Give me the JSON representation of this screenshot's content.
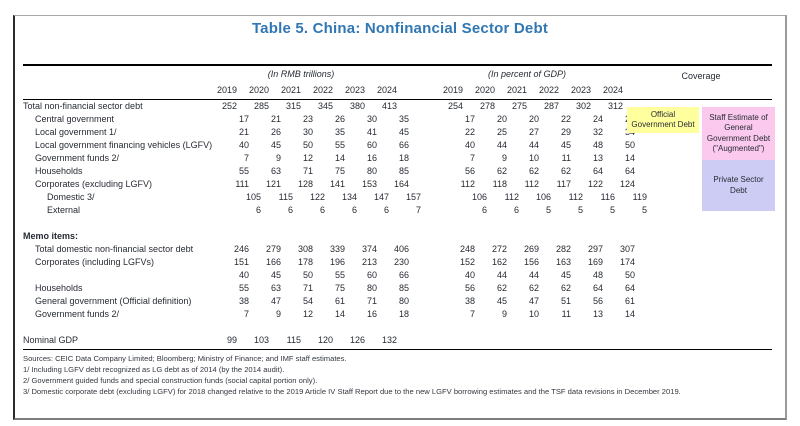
{
  "title": "Table 5. China: Nonfinancial Sector Debt",
  "table": {
    "group_rmb": "(In RMB trillions)",
    "group_gdp": "(In percent of GDP)",
    "coverage_header": "Coverage",
    "years": [
      "2019",
      "2020",
      "2021",
      "2022",
      "2023",
      "2024"
    ],
    "rows": [
      {
        "label": "Total non-financial sector debt",
        "indent": 0,
        "rmb": [
          252,
          285,
          315,
          345,
          380,
          413
        ],
        "gdp": [
          254,
          278,
          275,
          287,
          302,
          312
        ]
      },
      {
        "label": "Central government",
        "indent": 1,
        "rmb": [
          17,
          21,
          23,
          26,
          30,
          35
        ],
        "gdp": [
          17,
          20,
          20,
          22,
          24,
          26
        ]
      },
      {
        "label": "Local government 1/",
        "indent": 1,
        "rmb": [
          21,
          26,
          30,
          35,
          41,
          45
        ],
        "gdp": [
          22,
          25,
          27,
          29,
          32,
          34
        ]
      },
      {
        "label": "Local government financing vehicles (LGFV)",
        "indent": 1,
        "rmb": [
          40,
          45,
          50,
          55,
          60,
          66
        ],
        "gdp": [
          40,
          44,
          44,
          45,
          48,
          50
        ]
      },
      {
        "label": "Government funds 2/",
        "indent": 1,
        "rmb": [
          7,
          9,
          12,
          14,
          16,
          18
        ],
        "gdp": [
          7,
          9,
          10,
          11,
          13,
          14
        ]
      },
      {
        "label": "Households",
        "indent": 1,
        "rmb": [
          55,
          63,
          71,
          75,
          80,
          85
        ],
        "gdp": [
          56,
          62,
          62,
          62,
          64,
          64
        ]
      },
      {
        "label": "Corporates (excluding LGFV)",
        "indent": 1,
        "rmb": [
          111,
          121,
          128,
          141,
          153,
          164
        ],
        "gdp": [
          112,
          118,
          112,
          117,
          122,
          124
        ]
      },
      {
        "label": "Domestic 3/",
        "indent": 2,
        "rmb": [
          105,
          115,
          122,
          134,
          147,
          157
        ],
        "gdp": [
          106,
          112,
          106,
          112,
          116,
          119
        ]
      },
      {
        "label": "External",
        "indent": 2,
        "rmb": [
          6,
          6,
          6,
          6,
          6,
          7
        ],
        "gdp": [
          6,
          6,
          5,
          5,
          5,
          5
        ]
      },
      {
        "spacer": true
      },
      {
        "label": "Memo items:",
        "indent": 0,
        "bold": true
      },
      {
        "label": "Total domestic non-financial sector debt",
        "indent": 1,
        "rmb": [
          246,
          279,
          308,
          339,
          374,
          406
        ],
        "gdp": [
          248,
          272,
          269,
          282,
          297,
          307
        ]
      },
      {
        "label": "Corporates (including LGFVs)",
        "indent": 1,
        "rmb": [
          151,
          166,
          178,
          196,
          213,
          230
        ],
        "gdp": [
          152,
          162,
          156,
          163,
          169,
          174
        ]
      },
      {
        "label": "",
        "indent": 1,
        "rmb": [
          40,
          45,
          50,
          55,
          60,
          66
        ],
        "gdp": [
          40,
          44,
          44,
          45,
          48,
          50
        ]
      },
      {
        "label": "Households",
        "indent": 1,
        "rmb": [
          55,
          63,
          71,
          75,
          80,
          85
        ],
        "gdp": [
          56,
          62,
          62,
          62,
          64,
          64
        ]
      },
      {
        "label": "General government (Official definition)",
        "indent": 1,
        "rmb": [
          38,
          47,
          54,
          61,
          71,
          80
        ],
        "gdp": [
          38,
          45,
          47,
          51,
          56,
          61
        ]
      },
      {
        "label": "Government funds 2/",
        "indent": 1,
        "rmb": [
          7,
          9,
          12,
          14,
          16,
          18
        ],
        "gdp": [
          7,
          9,
          10,
          11,
          13,
          14
        ]
      },
      {
        "spacer": true
      },
      {
        "label": "Nominal GDP",
        "indent": 0,
        "rmb": [
          99,
          103,
          115,
          120,
          126,
          132
        ]
      }
    ]
  },
  "coverage": {
    "official": {
      "label": "Official\nGovernment Debt",
      "color": "#ffff9e"
    },
    "augmented": {
      "label": "Staff Estimate of\nGeneral\nGovernment Debt\n(\"Augmented\")",
      "color": "#fbc8ee"
    },
    "private": {
      "label": "Private Sector\nDebt",
      "color": "#ccccf4"
    }
  },
  "footnotes": [
    "Sources: CEIC Data Company Limited; Bloomberg; Ministry of Finance; and IMF staff estimates.",
    "1/ Including LGFV debt recognized as LG debt as of 2014 (by the 2014 audit).",
    "2/ Government guided funds and special construction funds (social capital portion only).",
    "3/ Domestic corporate debt (excluding LGFV) for 2018 changed relative to the 2019 Article IV Staff Report due to the new LGFV borrowing estimates and the TSF data revisions in December 2019."
  ]
}
